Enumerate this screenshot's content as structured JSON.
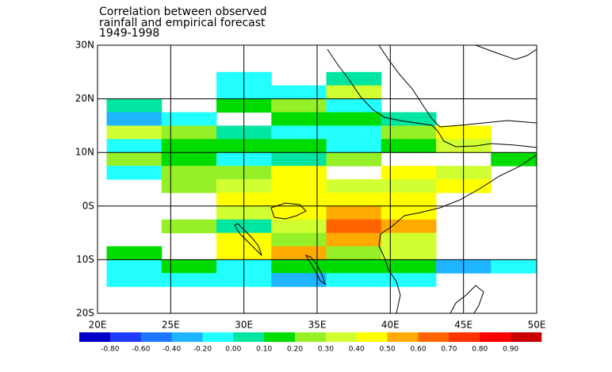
{
  "chart_data": {
    "type": "grid_map",
    "title": [
      "Correlation between observed",
      "rainfall and empirical forecast",
      "1949-1998"
    ],
    "xlim": [
      20,
      50
    ],
    "ylim": [
      -20,
      30
    ],
    "xticks": [
      {
        "value": 20,
        "label": "20E"
      },
      {
        "value": 25,
        "label": "25E"
      },
      {
        "value": 30,
        "label": "30E"
      },
      {
        "value": 35,
        "label": "35E"
      },
      {
        "value": 40,
        "label": "40E"
      },
      {
        "value": 45,
        "label": "45E"
      },
      {
        "value": 50,
        "label": "50E"
      }
    ],
    "yticks": [
      {
        "value": 30,
        "label": "30N"
      },
      {
        "value": 20,
        "label": "20N"
      },
      {
        "value": 10,
        "label": "10N"
      },
      {
        "value": 0,
        "label": "0S"
      },
      {
        "value": -10,
        "label": "10S"
      },
      {
        "value": -20,
        "label": "20S"
      }
    ],
    "grid": true,
    "x": [
      22.5,
      26.25,
      30,
      33.75,
      37.5,
      41.25,
      45,
      48.75
    ],
    "y": [
      23.75,
      21.25,
      18.75,
      16.25,
      13.75,
      11.25,
      8.75,
      6.25,
      3.75,
      1.25,
      -1.25,
      -3.75,
      -6.25,
      -8.75,
      -11.25,
      -13.75
    ],
    "values": [
      [
        null,
        null,
        -0.1,
        null,
        0.05,
        null,
        null,
        null
      ],
      [
        null,
        null,
        -0.1,
        -0.1,
        0.35,
        null,
        null,
        null
      ],
      [
        0.05,
        null,
        0.15,
        0.25,
        -0.1,
        null,
        null,
        null
      ],
      [
        -0.3,
        -0.1,
        null,
        0.15,
        0.15,
        0.05,
        null,
        null
      ],
      [
        0.35,
        0.25,
        0.05,
        -0.1,
        -0.1,
        0.25,
        0.45,
        null
      ],
      [
        -0.1,
        0.15,
        0.15,
        0.15,
        -0.1,
        0.15,
        0.35,
        null
      ],
      [
        0.25,
        0.15,
        -0.1,
        0.05,
        0.25,
        null,
        null,
        0.15
      ],
      [
        -0.1,
        0.25,
        0.25,
        0.45,
        null,
        0.45,
        0.35,
        null
      ],
      [
        null,
        0.25,
        0.35,
        0.45,
        0.35,
        0.35,
        0.45,
        null
      ],
      [
        null,
        null,
        0.45,
        0.45,
        0.45,
        0.45,
        null,
        null
      ],
      [
        null,
        null,
        0.35,
        0.45,
        0.55,
        0.45,
        null,
        null
      ],
      [
        null,
        0.25,
        0.05,
        0.35,
        0.65,
        0.55,
        null,
        null
      ],
      [
        null,
        null,
        0.45,
        0.25,
        0.55,
        0.35,
        null,
        null
      ],
      [
        0.15,
        null,
        0.45,
        0.55,
        0.25,
        0.35,
        null,
        null
      ],
      [
        -0.1,
        0.15,
        -0.1,
        0.15,
        0.15,
        0.15,
        -0.3,
        -0.1
      ],
      [
        -0.1,
        -0.1,
        -0.1,
        -0.3,
        -0.1,
        -0.1,
        null,
        null
      ]
    ],
    "levels": [
      {
        "value": -0.8,
        "label": "-0.80"
      },
      {
        "value": -0.6,
        "label": "-0.60"
      },
      {
        "value": -0.4,
        "label": "-0.40"
      },
      {
        "value": -0.2,
        "label": "-0.20"
      },
      {
        "value": 0,
        "label": "0.00"
      },
      {
        "value": 0.1,
        "label": "0.10"
      },
      {
        "value": 0.2,
        "label": "0.20"
      },
      {
        "value": 0.3,
        "label": "0.30"
      },
      {
        "value": 0.4,
        "label": "0.40"
      },
      {
        "value": 0.5,
        "label": "0.50"
      },
      {
        "value": 0.6,
        "label": "0.60"
      },
      {
        "value": 0.7,
        "label": "0.70"
      },
      {
        "value": 0.8,
        "label": "0.80"
      },
      {
        "value": 0.9,
        "label": "0.90"
      }
    ],
    "colors": [
      "#0000c8",
      "#1e3cff",
      "#1e78ff",
      "#1eb4ff",
      "#22ffff",
      "#00e6a0",
      "#00dc00",
      "#96f028",
      "#d2ff32",
      "#ffff00",
      "#ffaa00",
      "#ff6400",
      "#ff3200",
      "#ff0000",
      "#c80000"
    ]
  }
}
